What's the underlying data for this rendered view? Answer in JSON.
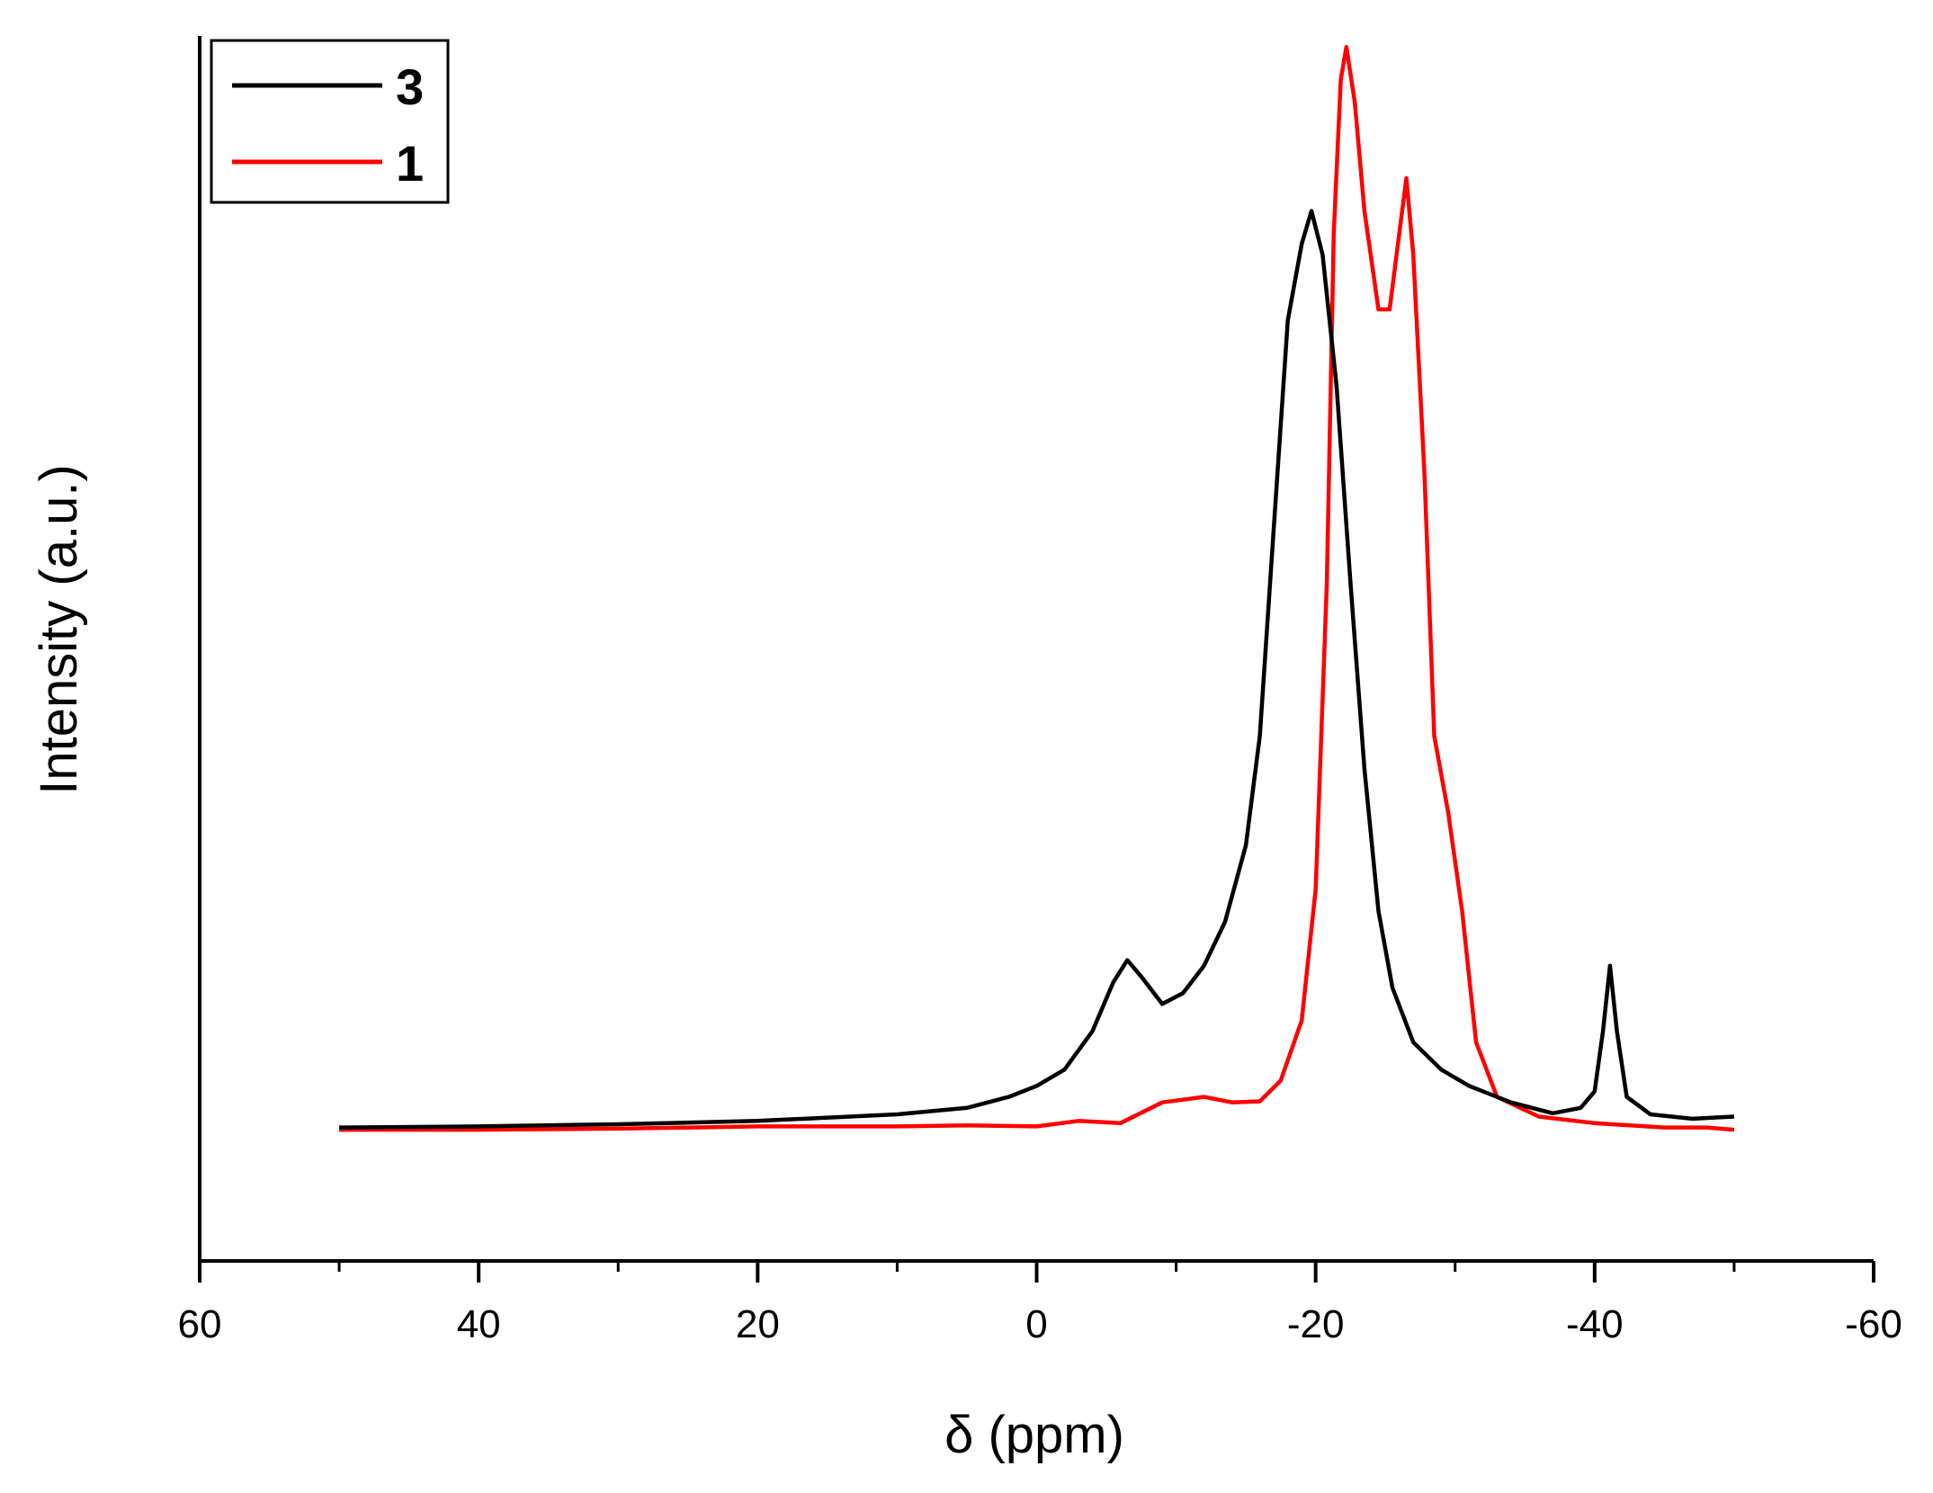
{
  "chart_data": {
    "type": "line",
    "title": "",
    "xlabel": "δ (ppm)",
    "ylabel": "Intensity (a.u.)",
    "xlim": [
      60,
      -60
    ],
    "ylim": [
      -12,
      100
    ],
    "x_ticks": [
      60,
      40,
      20,
      0,
      -20,
      -40,
      -60
    ],
    "x_tick_labels": [
      "60",
      "40",
      "20",
      "0",
      "-20",
      "-40",
      "-60"
    ],
    "x_minor_step": 10,
    "y_tick_labels_shown": false,
    "grid": false,
    "legend_position": "top-left",
    "series": [
      {
        "name": "3",
        "color": "#000000",
        "points": [
          [
            50,
            0.2
          ],
          [
            40,
            0.3
          ],
          [
            30,
            0.5
          ],
          [
            20,
            0.8
          ],
          [
            10,
            1.4
          ],
          [
            5,
            2.0
          ],
          [
            2,
            3.0
          ],
          [
            0,
            4.0
          ],
          [
            -2,
            5.5
          ],
          [
            -4,
            9.0
          ],
          [
            -5.5,
            13.5
          ],
          [
            -6.5,
            15.5
          ],
          [
            -7.5,
            14.0
          ],
          [
            -9,
            11.5
          ],
          [
            -10.5,
            12.5
          ],
          [
            -12,
            15.0
          ],
          [
            -13.5,
            19.0
          ],
          [
            -15,
            26.0
          ],
          [
            -16,
            36.0
          ],
          [
            -17,
            55.0
          ],
          [
            -18,
            74.0
          ],
          [
            -19,
            81.0
          ],
          [
            -19.7,
            84.0
          ],
          [
            -20.5,
            80.0
          ],
          [
            -21.5,
            68.0
          ],
          [
            -22.5,
            50.0
          ],
          [
            -23.5,
            33.0
          ],
          [
            -24.5,
            20.0
          ],
          [
            -25.5,
            13.0
          ],
          [
            -27,
            8.0
          ],
          [
            -29,
            5.5
          ],
          [
            -31,
            4.0
          ],
          [
            -34,
            2.5
          ],
          [
            -37,
            1.5
          ],
          [
            -39,
            2.0
          ],
          [
            -40,
            3.5
          ],
          [
            -40.6,
            9.0
          ],
          [
            -41.1,
            15.0
          ],
          [
            -41.6,
            9.0
          ],
          [
            -42.3,
            3.0
          ],
          [
            -44,
            1.4
          ],
          [
            -47,
            1.0
          ],
          [
            -50,
            1.2
          ]
        ]
      },
      {
        "name": "1",
        "color": "#ff0000",
        "points": [
          [
            50,
            0.0
          ],
          [
            40,
            0.0
          ],
          [
            30,
            0.1
          ],
          [
            20,
            0.3
          ],
          [
            10,
            0.3
          ],
          [
            5,
            0.4
          ],
          [
            0,
            0.3
          ],
          [
            -3,
            0.8
          ],
          [
            -6,
            0.6
          ],
          [
            -9,
            2.5
          ],
          [
            -12,
            3.0
          ],
          [
            -14,
            2.5
          ],
          [
            -16,
            2.6
          ],
          [
            -17.5,
            4.5
          ],
          [
            -19,
            10.0
          ],
          [
            -20,
            22.0
          ],
          [
            -20.8,
            50.0
          ],
          [
            -21.3,
            82.0
          ],
          [
            -21.8,
            96.0
          ],
          [
            -22.2,
            99.0
          ],
          [
            -22.8,
            94.0
          ],
          [
            -23.5,
            84.0
          ],
          [
            -24.5,
            75.0
          ],
          [
            -25.3,
            75.0
          ],
          [
            -26,
            82.0
          ],
          [
            -26.5,
            87.0
          ],
          [
            -27,
            80.0
          ],
          [
            -27.8,
            60.0
          ],
          [
            -28.5,
            36.0
          ],
          [
            -29.5,
            29.0
          ],
          [
            -30.5,
            20.0
          ],
          [
            -31.5,
            8.0
          ],
          [
            -33,
            3.0
          ],
          [
            -36,
            1.2
          ],
          [
            -40,
            0.6
          ],
          [
            -45,
            0.2
          ],
          [
            -48,
            0.2
          ],
          [
            -50,
            0.0
          ]
        ]
      }
    ]
  }
}
